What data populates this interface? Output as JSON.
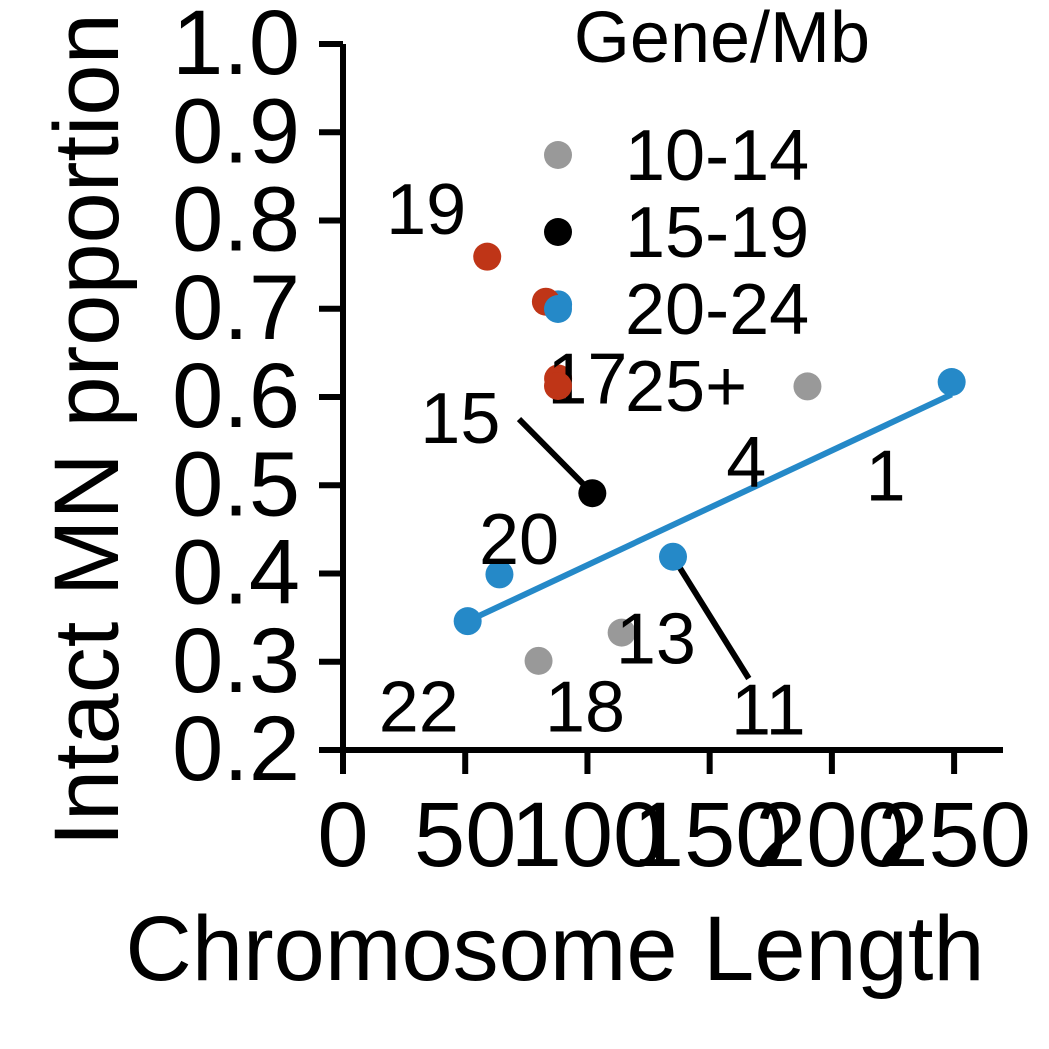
{
  "chart_data": {
    "type": "scatter",
    "xlabel": "Chromosome Length",
    "ylabel": "Intact MN proportion",
    "xlim": [
      0,
      270
    ],
    "ylim": [
      0.2,
      1.0
    ],
    "xticks": [
      0,
      50,
      100,
      150,
      200,
      250
    ],
    "yticks": [
      0.2,
      0.3,
      0.4,
      0.5,
      0.6,
      0.7,
      0.8,
      0.9,
      1.0
    ],
    "xtick_labels": [
      "0",
      "50",
      "100",
      "150",
      "200",
      "250"
    ],
    "ytick_labels": [
      "0.2",
      "0.3",
      "0.4",
      "0.5",
      "0.6",
      "0.7",
      "0.8",
      "0.9",
      "1.0"
    ],
    "legend": {
      "title": "Gene/Mb",
      "position": "top-right",
      "entries": [
        {
          "label": "10-14",
          "color": "#999999"
        },
        {
          "label": "15-19",
          "color": "#000000"
        },
        {
          "label": "20-24",
          "color": "#2589c8"
        },
        {
          "label": "25+",
          "color": "#bf3517"
        }
      ]
    },
    "points": [
      {
        "x": 249,
        "y": 0.617,
        "group": "20-24",
        "label": "1"
      },
      {
        "x": 190,
        "y": 0.612,
        "group": "10-14",
        "label": "4"
      },
      {
        "x": 135,
        "y": 0.419,
        "group": "20-24",
        "label": "11"
      },
      {
        "x": 114,
        "y": 0.333,
        "group": "10-14",
        "label": "13"
      },
      {
        "x": 102,
        "y": 0.491,
        "group": "15-19",
        "label": "15"
      },
      {
        "x": 88,
        "y": 0.705,
        "group": "20-24",
        "label": ""
      },
      {
        "x": 83,
        "y": 0.708,
        "group": "25+",
        "label": ""
      },
      {
        "x": 88,
        "y": 0.621,
        "group": "25+",
        "label": "17"
      },
      {
        "x": 80,
        "y": 0.301,
        "group": "10-14",
        "label": "18"
      },
      {
        "x": 59,
        "y": 0.759,
        "group": "25+",
        "label": "19"
      },
      {
        "x": 64,
        "y": 0.399,
        "group": "20-24",
        "label": "20"
      },
      {
        "x": 51,
        "y": 0.346,
        "group": "20-24",
        "label": "22"
      }
    ],
    "point_labels": [
      {
        "text": "1",
        "x": 222,
        "y": 0.51
      },
      {
        "text": "4",
        "x": 165,
        "y": 0.525
      },
      {
        "text": "11",
        "x": 174,
        "y": 0.245
      },
      {
        "text": "13",
        "x": 128,
        "y": 0.325
      },
      {
        "text": "15",
        "x": 48,
        "y": 0.575
      },
      {
        "text": "17",
        "x": 100,
        "y": 0.62
      },
      {
        "text": "18",
        "x": 99,
        "y": 0.248
      },
      {
        "text": "19",
        "x": 34,
        "y": 0.812
      },
      {
        "text": "20",
        "x": 72,
        "y": 0.438
      },
      {
        "text": "22",
        "x": 31,
        "y": 0.248
      }
    ],
    "leader_lines": [
      {
        "x1": 72,
        "y1": 0.575,
        "x2": 102,
        "y2": 0.491
      },
      {
        "x1": 137,
        "y1": 0.41,
        "x2": 166,
        "y2": 0.281
      }
    ],
    "fit_line": {
      "color": "#2589c8",
      "x1": 51,
      "y1": 0.346,
      "x2": 249,
      "y2": 0.603
    },
    "grid": false
  }
}
